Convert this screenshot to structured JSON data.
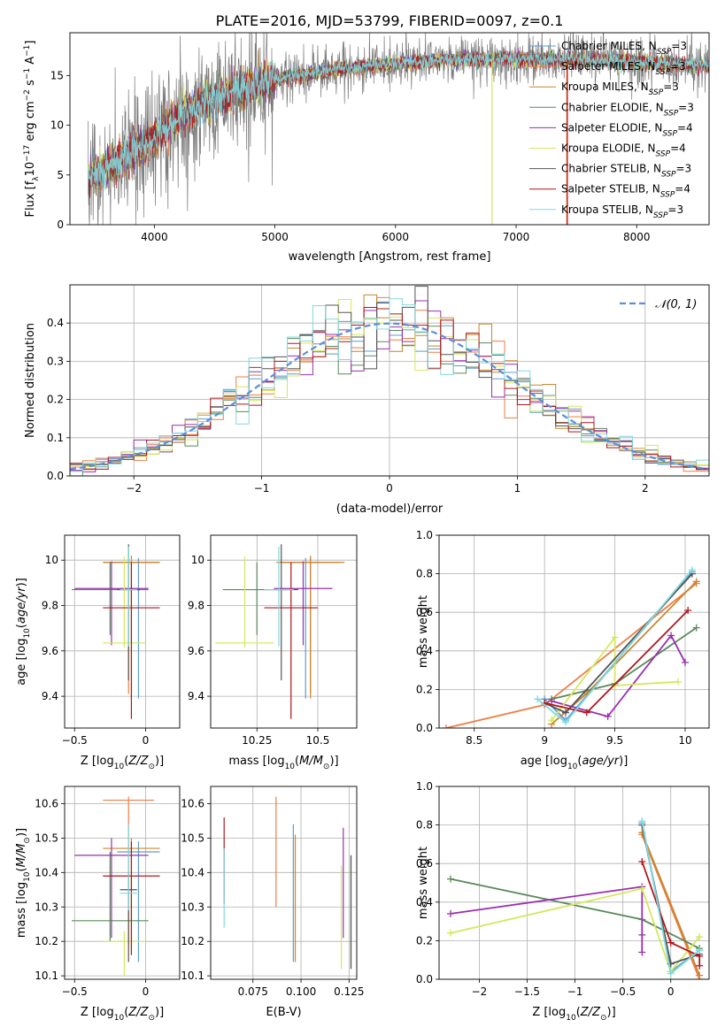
{
  "figure_title": "PLATE=2016, MJD=53799, FIBERID=0097, z=0.1",
  "models": [
    {
      "imf": "Chabrier",
      "lib": "MILES",
      "nssp": "3",
      "color": "#5b9bd5"
    },
    {
      "imf": "Salpeter",
      "lib": "MILES",
      "nssp": "3",
      "color": "#ef7e45"
    },
    {
      "imf": "Kroupa",
      "lib": "MILES",
      "nssp": "3",
      "color": "#c9862e"
    },
    {
      "imf": "Chabrier",
      "lib": "ELODIE",
      "nssp": "3",
      "color": "#5a8a5a"
    },
    {
      "imf": "Salpeter",
      "lib": "ELODIE",
      "nssp": "4",
      "color": "#9a2fae"
    },
    {
      "imf": "Kroupa",
      "lib": "ELODIE",
      "nssp": "4",
      "color": "#d4e85a"
    },
    {
      "imf": "Chabrier",
      "lib": "STELIB",
      "nssp": "3",
      "color": "#555555"
    },
    {
      "imf": "Salpeter",
      "lib": "STELIB",
      "nssp": "4",
      "color": "#b0161b"
    },
    {
      "imf": "Kroupa",
      "lib": "STELIB",
      "nssp": "3",
      "color": "#7fd9e0"
    }
  ],
  "chart_data": [
    {
      "id": "spectrum",
      "type": "line",
      "xlabel": "wavelength [Angstrom, rest frame]",
      "ylabel": "Flux [f_λ10^-17 erg cm^-2 s^-1 A^-1]",
      "xlim": [
        3300,
        8600
      ],
      "ylim": [
        0,
        19.3
      ],
      "xticks": [
        4000,
        5000,
        6000,
        7000,
        8000
      ],
      "yticks": [
        0,
        5,
        10,
        15
      ],
      "grid": false,
      "legend": "right",
      "data_range": [
        3450,
        8600
      ],
      "continuum": [
        [
          3450,
          4.5
        ],
        [
          3700,
          6.5
        ],
        [
          3950,
          8.2
        ],
        [
          4200,
          10.8
        ],
        [
          4400,
          12.2
        ],
        [
          4700,
          13.5
        ],
        [
          5000,
          14.6
        ],
        [
          5500,
          15.6
        ],
        [
          6000,
          16.2
        ],
        [
          6500,
          16.6
        ],
        [
          7000,
          16.7
        ],
        [
          7500,
          16.6
        ],
        [
          8000,
          16.4
        ],
        [
          8600,
          16.0
        ]
      ],
      "drop_lines": [
        {
          "model": 5,
          "x": 6800
        },
        {
          "model": 1,
          "x": 7420
        },
        {
          "model": 7,
          "x": 7425
        }
      ]
    },
    {
      "id": "residuals",
      "type": "histogram",
      "xlabel": "(data-model)/error",
      "ylabel": "Normed distribution",
      "xlim": [
        -2.5,
        2.5
      ],
      "ylim": [
        0,
        0.5
      ],
      "xticks": [
        -2,
        -1,
        0,
        1,
        2
      ],
      "yticks": [
        0.0,
        0.1,
        0.2,
        0.3,
        0.4
      ],
      "grid": true,
      "legend": "top-right",
      "reference_curve": {
        "name": "𝒩(0, 1)",
        "color": "#5b8fd9"
      },
      "bin_start": -2.5,
      "bin_width": 0.1
    },
    {
      "id": "age_vs_Z",
      "type": "errorbar",
      "xlabel": "Z [log10(Z/Z⊙)]",
      "ylabel": "age [log10(age/yr)]",
      "xlim": [
        -0.57,
        0.24
      ],
      "ylim": [
        9.26,
        10.11
      ],
      "xticks": [
        -0.5,
        0.0
      ],
      "yticks": [
        9.4,
        9.6,
        9.8,
        10.0
      ],
      "grid": true,
      "points": [
        {
          "model": 0,
          "x": -0.05,
          "y": 9.99,
          "xerr": [
            0.15,
            0.15
          ],
          "yerr": [
            0.6,
            0.02
          ]
        },
        {
          "model": 1,
          "x": -0.12,
          "y": 9.99,
          "xerr": [
            0.18,
            0.18
          ],
          "yerr": [
            0.58,
            0.02
          ]
        },
        {
          "model": 2,
          "x": -0.1,
          "y": 9.99,
          "xerr": [
            0.2,
            0.2
          ],
          "yerr": [
            0.6,
            0.03
          ]
        },
        {
          "model": 3,
          "x": -0.25,
          "y": 9.87,
          "xerr": [
            0.27,
            0.27
          ],
          "yerr": [
            0.2,
            0.12
          ]
        },
        {
          "model": 4,
          "x": -0.24,
          "y": 9.875,
          "xerr": [
            0.26,
            0.26
          ],
          "yerr": [
            0.25,
            0.12
          ]
        },
        {
          "model": 5,
          "x": -0.15,
          "y": 9.635,
          "xerr": [
            0.15,
            0.15
          ],
          "yerr": [
            0.02,
            0.38
          ]
        },
        {
          "model": 6,
          "x": -0.12,
          "y": 9.87,
          "xerr": [
            0.08,
            0.08
          ],
          "yerr": [
            0.4,
            0.2
          ]
        },
        {
          "model": 7,
          "x": -0.1,
          "y": 9.79,
          "xerr": [
            0.2,
            0.2
          ],
          "yerr": [
            0.49,
            0.2
          ]
        },
        {
          "model": 8,
          "x": -0.12,
          "y": 9.87,
          "xerr": [
            0.06,
            0.06
          ],
          "yerr": [
            0.25,
            0.19
          ]
        }
      ]
    },
    {
      "id": "age_vs_mass",
      "type": "errorbar",
      "xlabel": "mass [log10(M/M⊙)]",
      "ylabel": "",
      "xlim": [
        10.06,
        10.66
      ],
      "ylim": [
        9.26,
        10.11
      ],
      "xticks": [
        10.25,
        10.5
      ],
      "yticks": [
        9.4,
        9.6,
        9.8,
        10.0
      ],
      "grid": true,
      "points": [
        {
          "model": 0,
          "x": 10.45,
          "y": 9.99,
          "xerr": [
            0.1,
            0.1
          ],
          "yerr": [
            0.6,
            0.02
          ]
        },
        {
          "model": 1,
          "x": 10.47,
          "y": 9.99,
          "xerr": [
            0.12,
            0.12
          ],
          "yerr": [
            0.58,
            0.02
          ]
        },
        {
          "model": 2,
          "x": 10.47,
          "y": 9.99,
          "xerr": [
            0.14,
            0.14
          ],
          "yerr": [
            0.6,
            0.03
          ]
        },
        {
          "model": 3,
          "x": 10.25,
          "y": 9.87,
          "xerr": [
            0.14,
            0.14
          ],
          "yerr": [
            0.2,
            0.12
          ]
        },
        {
          "model": 4,
          "x": 10.44,
          "y": 9.875,
          "xerr": [
            0.12,
            0.12
          ],
          "yerr": [
            0.25,
            0.12
          ]
        },
        {
          "model": 5,
          "x": 10.2,
          "y": 9.635,
          "xerr": [
            0.12,
            0.12
          ],
          "yerr": [
            0.02,
            0.38
          ]
        },
        {
          "model": 6,
          "x": 10.35,
          "y": 9.87,
          "xerr": [
            0.07,
            0.07
          ],
          "yerr": [
            0.4,
            0.2
          ]
        },
        {
          "model": 7,
          "x": 10.39,
          "y": 9.79,
          "xerr": [
            0.11,
            0.11
          ],
          "yerr": [
            0.49,
            0.2
          ]
        },
        {
          "model": 8,
          "x": 10.34,
          "y": 9.87,
          "xerr": [
            0.06,
            0.06
          ],
          "yerr": [
            0.25,
            0.19
          ]
        }
      ]
    },
    {
      "id": "weight_vs_age",
      "type": "line",
      "xlabel": "age [log10(age/yr)]",
      "ylabel": "mass weight",
      "xlim": [
        8.25,
        10.17
      ],
      "ylim": [
        0,
        1.0
      ],
      "xticks": [
        8.5,
        9.0,
        9.5,
        10.0
      ],
      "yticks": [
        0.0,
        0.2,
        0.4,
        0.6,
        0.8,
        1.0
      ],
      "grid": true,
      "series": [
        {
          "model": 0,
          "points": [
            [
              9.0,
              0.15
            ],
            [
              9.15,
              0.04
            ],
            [
              10.05,
              0.81
            ]
          ]
        },
        {
          "model": 1,
          "points": [
            [
              8.3,
              0.0
            ],
            [
              9.0,
              0.12
            ],
            [
              10.08,
              0.75
            ]
          ]
        },
        {
          "model": 2,
          "points": [
            [
              9.05,
              0.02
            ],
            [
              9.3,
              0.18
            ],
            [
              10.08,
              0.76
            ]
          ]
        },
        {
          "model": 3,
          "points": [
            [
              9.05,
              0.15
            ],
            [
              9.5,
              0.23
            ],
            [
              10.08,
              0.52
            ]
          ]
        },
        {
          "model": 4,
          "points": [
            [
              9.05,
              0.14
            ],
            [
              9.45,
              0.06
            ],
            [
              9.9,
              0.48
            ],
            [
              10.0,
              0.34
            ]
          ]
        },
        {
          "model": 5,
          "points": [
            [
              9.05,
              0.04
            ],
            [
              9.5,
              0.47
            ],
            [
              9.5,
              0.22
            ],
            [
              9.95,
              0.24
            ]
          ]
        },
        {
          "model": 6,
          "points": [
            [
              9.0,
              0.13
            ],
            [
              9.15,
              0.08
            ],
            [
              10.05,
              0.8
            ]
          ]
        },
        {
          "model": 7,
          "points": [
            [
              9.0,
              0.13
            ],
            [
              9.3,
              0.08
            ],
            [
              10.02,
              0.61
            ]
          ]
        },
        {
          "model": 8,
          "points": [
            [
              8.95,
              0.15
            ],
            [
              9.15,
              0.03
            ],
            [
              10.05,
              0.82
            ]
          ]
        }
      ]
    },
    {
      "id": "mass_vs_Z",
      "type": "errorbar",
      "xlabel": "Z [log10(Z/Z⊙)]",
      "ylabel": "mass [log10(M/M⊙)]",
      "xlim": [
        -0.57,
        0.24
      ],
      "ylim": [
        10.09,
        10.65
      ],
      "xticks": [
        -0.5,
        0.0
      ],
      "yticks": [
        10.1,
        10.2,
        10.3,
        10.4,
        10.5,
        10.6
      ],
      "grid": true,
      "points": [
        {
          "model": 0,
          "x": -0.05,
          "y": 10.46,
          "xerr": [
            0.15,
            0.15
          ],
          "yerr": [
            0.32,
            0.03
          ]
        },
        {
          "model": 1,
          "x": -0.12,
          "y": 10.61,
          "xerr": [
            0.18,
            0.18
          ],
          "yerr": [
            0.42,
            0.01
          ]
        },
        {
          "model": 2,
          "x": -0.1,
          "y": 10.47,
          "xerr": [
            0.2,
            0.2
          ],
          "yerr": [
            0.3,
            0.03
          ]
        },
        {
          "model": 3,
          "x": -0.25,
          "y": 10.26,
          "xerr": [
            0.27,
            0.27
          ],
          "yerr": [
            0.06,
            0.2
          ]
        },
        {
          "model": 4,
          "x": -0.24,
          "y": 10.45,
          "xerr": [
            0.26,
            0.26
          ],
          "yerr": [
            0.24,
            0.05
          ]
        },
        {
          "model": 5,
          "x": -0.15,
          "y": 10.2,
          "xerr": [
            0.15,
            0.15
          ],
          "yerr": [
            0.1,
            0.03
          ]
        },
        {
          "model": 6,
          "x": -0.12,
          "y": 10.35,
          "xerr": [
            0.06,
            0.06
          ],
          "yerr": [
            0.21,
            0.05
          ]
        },
        {
          "model": 7,
          "x": -0.1,
          "y": 10.39,
          "xerr": [
            0.2,
            0.2
          ],
          "yerr": [
            0.23,
            0.1
          ]
        },
        {
          "model": 8,
          "x": -0.12,
          "y": 10.34,
          "xerr": [
            0.06,
            0.06
          ],
          "yerr": [
            0.05,
            0.2
          ]
        }
      ]
    },
    {
      "id": "mass_vs_ebv",
      "type": "errorbar",
      "xlabel": "E(B-V)",
      "ylabel": "",
      "xlim": [
        0.053,
        0.129
      ],
      "ylim": [
        10.09,
        10.65
      ],
      "xticks": [
        0.075,
        0.1,
        0.125
      ],
      "xtick_labels": [
        "0.075",
        "0.100",
        "0.125"
      ],
      "yticks": [
        10.1,
        10.2,
        10.3,
        10.4,
        10.5,
        10.6
      ],
      "grid": true,
      "points": [
        {
          "model": 0,
          "x": 0.096,
          "y": 10.38,
          "xerr": [
            0,
            0
          ],
          "yerr": [
            0.24,
            0.16
          ]
        },
        {
          "model": 1,
          "x": 0.087,
          "y": 10.46,
          "xerr": [
            0,
            0
          ],
          "yerr": [
            0.16,
            0.16
          ]
        },
        {
          "model": 2,
          "x": 0.097,
          "y": 10.38,
          "xerr": [
            0,
            0
          ],
          "yerr": [
            0.24,
            0.13
          ]
        },
        {
          "model": 3,
          "x": 0.126,
          "y": 10.28,
          "xerr": [
            0,
            0
          ],
          "yerr": [
            0.16,
            0.17
          ]
        },
        {
          "model": 4,
          "x": 0.122,
          "y": 10.37,
          "xerr": [
            0,
            0
          ],
          "yerr": [
            0.16,
            0.16
          ]
        },
        {
          "model": 5,
          "x": 0.121,
          "y": 10.27,
          "xerr": [
            0,
            0
          ],
          "yerr": [
            0.15,
            0.15
          ]
        },
        {
          "model": 6,
          "x": 0.126,
          "y": 10.3,
          "xerr": [
            0,
            0
          ],
          "yerr": [
            0.18,
            0.15
          ]
        },
        {
          "model": 7,
          "x": 0.06,
          "y": 10.43,
          "xerr": [
            0,
            0
          ],
          "yerr": [
            0.12,
            0.13
          ]
        },
        {
          "model": 8,
          "x": 0.06,
          "y": 10.35,
          "xerr": [
            0,
            0
          ],
          "yerr": [
            0.11,
            0.12
          ]
        }
      ]
    },
    {
      "id": "weight_vs_Z",
      "type": "line",
      "xlabel": "Z [log10(Z/Z⊙)]",
      "ylabel": "mass weight",
      "xlim": [
        -2.42,
        0.4
      ],
      "ylim": [
        0,
        1.0
      ],
      "xticks": [
        -2.0,
        -1.5,
        -1.0,
        -0.5,
        0.0
      ],
      "yticks": [
        0.0,
        0.2,
        0.4,
        0.6,
        0.8,
        1.0
      ],
      "grid": true,
      "series": [
        {
          "model": 0,
          "points": [
            [
              -0.3,
              0.81
            ],
            [
              0.0,
              0.04
            ],
            [
              0.3,
              0.15
            ]
          ]
        },
        {
          "model": 1,
          "points": [
            [
              -0.3,
              0.75
            ],
            [
              0.3,
              0.0
            ]
          ]
        },
        {
          "model": 2,
          "points": [
            [
              -0.3,
              0.76
            ],
            [
              0.3,
              0.02
            ]
          ]
        },
        {
          "model": 3,
          "points": [
            [
              -2.3,
              0.52
            ],
            [
              -0.3,
              0.31
            ],
            [
              0.3,
              0.16
            ]
          ]
        },
        {
          "model": 4,
          "points": [
            [
              -2.3,
              0.34
            ],
            [
              -0.3,
              0.48
            ],
            [
              -0.3,
              0.23
            ],
            [
              -0.3,
              0.14
            ]
          ]
        },
        {
          "model": 5,
          "points": [
            [
              -2.3,
              0.24
            ],
            [
              -0.3,
              0.47
            ],
            [
              0.0,
              0.04
            ],
            [
              0.3,
              0.22
            ]
          ]
        },
        {
          "model": 6,
          "points": [
            [
              -0.3,
              0.8
            ],
            [
              0.0,
              0.08
            ],
            [
              0.3,
              0.13
            ]
          ]
        },
        {
          "model": 7,
          "points": [
            [
              -0.3,
              0.61
            ],
            [
              0.0,
              0.19
            ],
            [
              0.3,
              0.12
            ],
            [
              0.3,
              0.07
            ]
          ]
        },
        {
          "model": 8,
          "points": [
            [
              -0.3,
              0.82
            ],
            [
              0.0,
              0.03
            ],
            [
              0.3,
              0.15
            ]
          ]
        }
      ]
    }
  ]
}
